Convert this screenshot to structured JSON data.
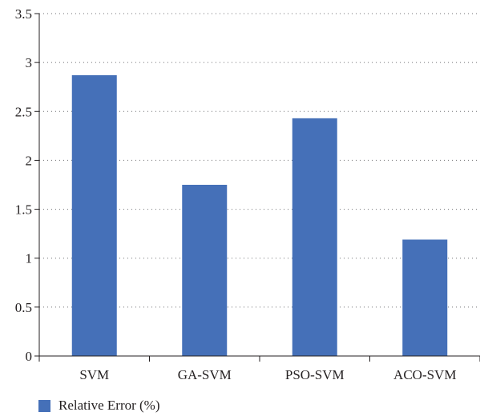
{
  "chart_data": {
    "type": "bar",
    "categories": [
      "SVM",
      "GA-SVM",
      "PSO-SVM",
      "ACO-SVM"
    ],
    "series": [
      {
        "name": "Relative Error (%)",
        "values": [
          2.87,
          1.75,
          2.43,
          1.19
        ],
        "color": "#4570b8"
      }
    ],
    "ylim": [
      0,
      3.5
    ],
    "yticks": [
      "0",
      "0.5",
      "1",
      "1.5",
      "2",
      "2.5",
      "3",
      "3.5"
    ],
    "grid": "horizontal dotted",
    "legend_position": "bottom-left"
  }
}
